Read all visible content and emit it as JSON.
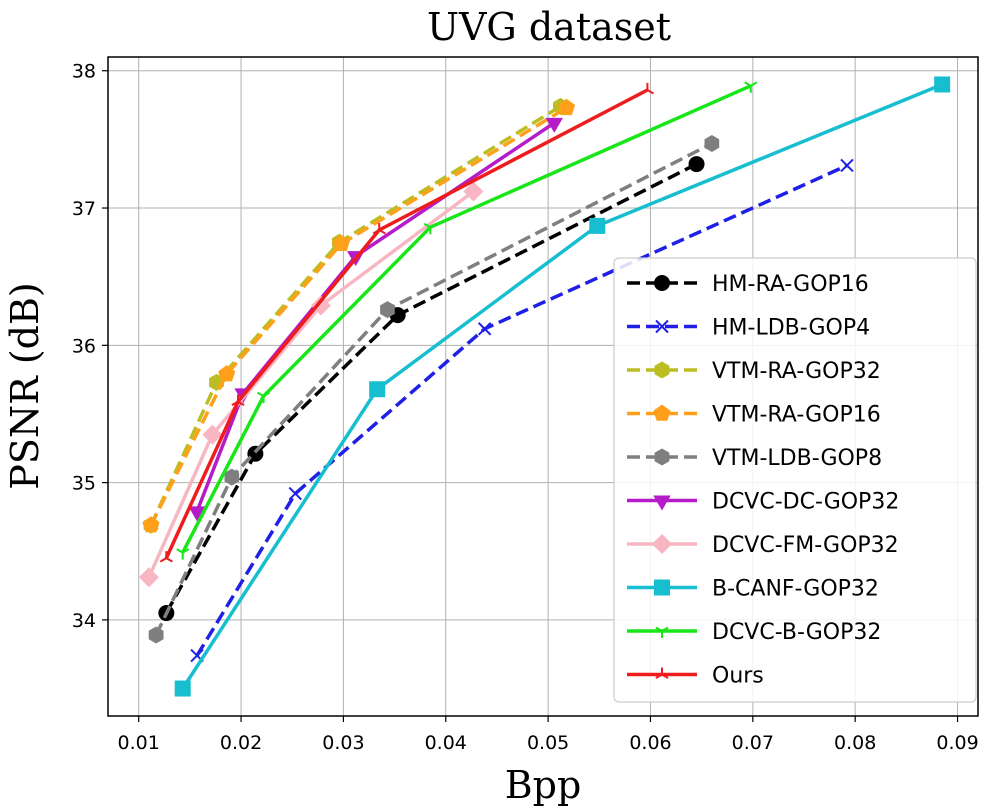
{
  "chart_data": {
    "type": "line",
    "title": "UVG dataset",
    "xlabel": "Bpp",
    "ylabel": "PSNR (dB)",
    "xlim": [
      0.007,
      0.092
    ],
    "ylim": [
      33.3,
      38.1
    ],
    "xticks": [
      0.01,
      0.02,
      0.03,
      0.04,
      0.05,
      0.06,
      0.07,
      0.08,
      0.09
    ],
    "xtick_labels": [
      "0.01",
      "0.02",
      "0.03",
      "0.04",
      "0.05",
      "0.06",
      "0.07",
      "0.08",
      "0.09"
    ],
    "yticks": [
      34,
      35,
      36,
      37,
      38
    ],
    "ytick_labels": [
      "34",
      "35",
      "36",
      "37",
      "38"
    ],
    "grid": true,
    "legend_position": "lower-right",
    "series": [
      {
        "name": "HM-RA-GOP16",
        "color": "#000000",
        "dash": "dashed",
        "marker": "circle",
        "x": [
          0.0127,
          0.0214,
          0.0353,
          0.0645
        ],
        "y": [
          34.05,
          35.21,
          36.22,
          37.32
        ]
      },
      {
        "name": "HM-LDB-GOP4",
        "color": "#1f1fe6",
        "dash": "dashed",
        "marker": "x",
        "x": [
          0.0157,
          0.0253,
          0.0438,
          0.0792
        ],
        "y": [
          33.74,
          34.92,
          36.12,
          37.31
        ]
      },
      {
        "name": "VTM-RA-GOP32",
        "color": "#bcbd22",
        "dash": "dashed",
        "marker": "hexagon",
        "x": [
          0.0112,
          0.0176,
          0.0296,
          0.0512
        ],
        "y": [
          34.69,
          35.73,
          36.75,
          37.74
        ]
      },
      {
        "name": "VTM-RA-GOP16",
        "color": "#ff9f1a",
        "dash": "dashed",
        "marker": "pentagon",
        "x": [
          0.0112,
          0.0186,
          0.0298,
          0.0518
        ],
        "y": [
          34.69,
          35.79,
          36.74,
          37.73
        ]
      },
      {
        "name": "VTM-LDB-GOP8",
        "color": "#7f7f7f",
        "dash": "dashed",
        "marker": "hexagon",
        "x": [
          0.0117,
          0.0191,
          0.0343,
          0.066
        ],
        "y": [
          33.89,
          35.04,
          36.26,
          37.47
        ]
      },
      {
        "name": "DCVC-DC-GOP32",
        "color": "#b51bc9",
        "dash": "solid",
        "marker": "triangle-down",
        "x": [
          0.0157,
          0.0202,
          0.0312,
          0.0506
        ],
        "y": [
          34.79,
          35.65,
          36.65,
          37.62
        ]
      },
      {
        "name": "DCVC-FM-GOP32",
        "color": "#f7b6c2",
        "dash": "solid",
        "marker": "diamond",
        "x": [
          0.011,
          0.0172,
          0.0278,
          0.0427
        ],
        "y": [
          34.31,
          35.35,
          36.29,
          37.12
        ]
      },
      {
        "name": "B-CANF-GOP32",
        "color": "#17becf",
        "dash": "solid",
        "marker": "square",
        "x": [
          0.0143,
          0.0333,
          0.0548,
          0.0885
        ],
        "y": [
          33.5,
          35.68,
          36.87,
          37.9
        ]
      },
      {
        "name": "DCVC-B-GOP32",
        "color": "#19e619",
        "dash": "solid",
        "marker": "tri-down",
        "x": [
          0.0143,
          0.0222,
          0.0385,
          0.0698
        ],
        "y": [
          34.49,
          35.63,
          36.86,
          37.89
        ]
      },
      {
        "name": "Ours",
        "color": "#ee1c1c",
        "dash": "solid",
        "marker": "tri-up",
        "x": [
          0.0127,
          0.0197,
          0.0335,
          0.0597
        ],
        "y": [
          34.45,
          35.59,
          36.84,
          37.86
        ]
      }
    ]
  }
}
